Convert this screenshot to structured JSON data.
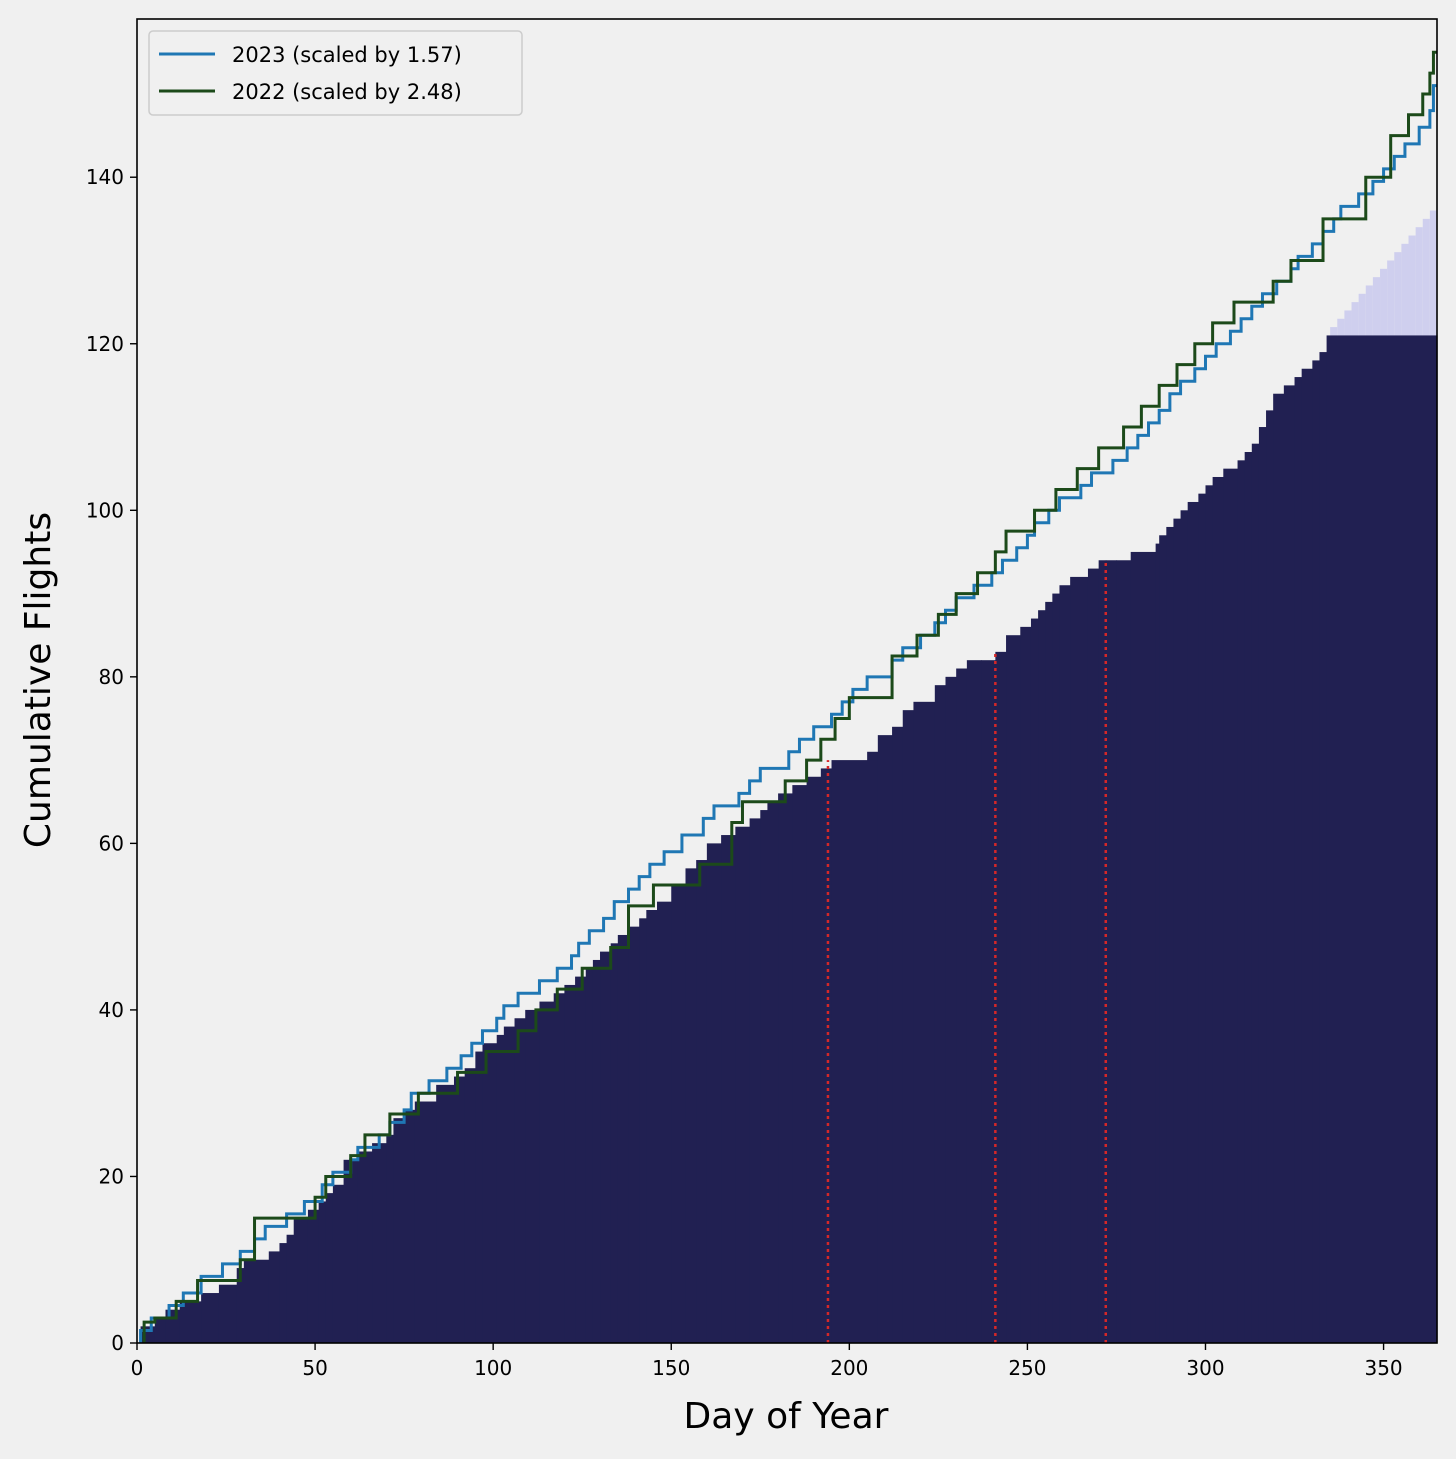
{
  "colors": {
    "background": "#f0f0f0",
    "bars": "#212052",
    "projection": "#cfcfee",
    "line_2023": "#1f77b4",
    "line_2022": "#1c4a1a",
    "markers": "#d62728"
  },
  "chart_data": {
    "type": "area",
    "xlabel": "Day of Year",
    "ylabel": "Cumulative Flights",
    "xlim": [
      0,
      365
    ],
    "ylim": [
      0,
      159
    ],
    "xticks": [
      0,
      50,
      100,
      150,
      200,
      250,
      300,
      350
    ],
    "yticks": [
      0,
      20,
      40,
      60,
      80,
      100,
      120,
      140
    ],
    "grid": false,
    "legend_position": "top-left",
    "cumulative_steps": {
      "x": [
        1,
        5,
        8,
        12,
        18,
        23,
        28,
        30,
        37,
        40,
        42,
        44,
        48,
        51,
        53,
        55,
        58,
        62,
        66,
        70,
        72,
        75,
        78,
        84,
        89,
        92,
        95,
        97,
        101,
        103,
        106,
        109,
        113,
        117,
        120,
        123,
        126,
        128,
        130,
        133,
        135,
        138,
        141,
        143,
        146,
        150,
        154,
        157,
        160,
        164,
        168,
        172,
        175,
        177,
        180,
        184,
        188,
        192,
        195,
        205,
        208,
        212,
        215,
        218,
        224,
        227,
        230,
        233,
        237,
        241,
        244,
        248,
        251,
        253,
        255,
        257,
        259,
        262,
        267,
        270,
        272,
        275,
        279,
        286,
        287,
        289,
        291,
        293,
        295,
        298,
        300,
        302,
        305,
        309,
        311,
        313,
        315,
        317,
        319,
        322,
        325,
        327,
        330,
        332,
        334
      ],
      "y": [
        2,
        3,
        4,
        5,
        6,
        7,
        9,
        10,
        11,
        12,
        13,
        15,
        16,
        17,
        18,
        19,
        22,
        23,
        24,
        25,
        27,
        28,
        29,
        31,
        32,
        33,
        35,
        36,
        37,
        38,
        39,
        40,
        41,
        42,
        43,
        44,
        45,
        46,
        47,
        48,
        49,
        50,
        51,
        52,
        53,
        55,
        57,
        58,
        60,
        61,
        62,
        63,
        64,
        65,
        66,
        67,
        68,
        69,
        70,
        71,
        73,
        74,
        76,
        77,
        79,
        80,
        81,
        82,
        82,
        83,
        85,
        86,
        87,
        88,
        89,
        90,
        91,
        92,
        93,
        94,
        94,
        94,
        95,
        96,
        97,
        98,
        99,
        100,
        101,
        102,
        103,
        104,
        105,
        106,
        107,
        108,
        110,
        112,
        114,
        115,
        116,
        117,
        118,
        119,
        121
      ],
      "end_day": 365
    },
    "projection_steps": {
      "x": [
        335,
        337,
        339,
        341,
        343,
        345,
        347,
        349,
        351,
        353,
        355,
        357,
        359,
        361,
        363
      ],
      "y": [
        122,
        123,
        124,
        125,
        126,
        127,
        128,
        129,
        130,
        131,
        132,
        133,
        134,
        135,
        136
      ]
    },
    "series": [
      {
        "name": "2023 (scaled by 1.57)",
        "x": [
          1,
          4,
          9,
          13,
          18,
          24,
          29,
          33,
          36,
          42,
          47,
          52,
          55,
          60,
          62,
          68,
          71,
          75,
          77,
          82,
          87,
          91,
          94,
          97,
          101,
          103,
          107,
          113,
          118,
          122,
          124,
          127,
          131,
          134,
          138,
          141,
          144,
          148,
          153,
          159,
          162,
          169,
          172,
          175,
          183,
          186,
          190,
          195,
          198,
          201,
          205,
          212,
          215,
          220,
          224,
          227,
          230,
          235,
          240,
          243,
          247,
          250,
          252,
          256,
          259,
          265,
          268,
          274,
          278,
          281,
          284,
          287,
          290,
          293,
          297,
          300,
          303,
          307,
          310,
          313,
          316,
          320,
          324,
          326,
          330,
          333,
          336,
          338,
          343,
          347,
          350,
          353,
          356,
          360,
          363,
          364
        ],
        "y": [
          1.5,
          3,
          4.5,
          6,
          8,
          9.5,
          11,
          12.5,
          14,
          15.5,
          17,
          19,
          20.5,
          22,
          23.5,
          25,
          26.5,
          28,
          30,
          31.5,
          33,
          34.5,
          36,
          37.5,
          39,
          40.5,
          42,
          43.5,
          45,
          46.5,
          48,
          49.5,
          51,
          53,
          54.5,
          56,
          57.5,
          59,
          61,
          63,
          64.5,
          66,
          67.5,
          69,
          71,
          72.5,
          74,
          75.5,
          77,
          78.5,
          80,
          82,
          83.5,
          85,
          86.5,
          88,
          89.5,
          91,
          92.5,
          94,
          95.5,
          97,
          98.5,
          100,
          101.5,
          103,
          104.5,
          106,
          107.5,
          109,
          110.5,
          112,
          114,
          115.5,
          117,
          118.5,
          120,
          121.5,
          123,
          124.5,
          126,
          127.5,
          129,
          130.5,
          132,
          133.5,
          135,
          136.5,
          138,
          139.5,
          141,
          142.5,
          144,
          146,
          148,
          151
        ]
      },
      {
        "name": "2022 (scaled by 2.48)",
        "x": [
          2,
          5,
          11,
          17,
          29,
          33,
          50,
          53,
          60,
          64,
          71,
          79,
          90,
          98,
          107,
          112,
          118,
          125,
          133,
          138,
          145,
          158,
          167,
          170,
          182,
          188,
          192,
          196,
          200,
          212,
          219,
          225,
          230,
          236,
          241,
          244,
          252,
          258,
          264,
          270,
          277,
          282,
          287,
          292,
          297,
          302,
          308,
          319,
          324,
          333,
          345,
          352,
          357,
          361,
          363,
          364
        ],
        "y": [
          2.5,
          3,
          5,
          7.5,
          10,
          15,
          17.5,
          20,
          22.5,
          25,
          27.5,
          30,
          32.5,
          35,
          37.5,
          40,
          42.5,
          45,
          47.5,
          52.5,
          55,
          57.5,
          62.5,
          65,
          67.5,
          70,
          72.5,
          75,
          77.5,
          82.5,
          85,
          87.5,
          90,
          92.5,
          95,
          97.5,
          100,
          102.5,
          105,
          107.5,
          110,
          112.5,
          115,
          117.5,
          120,
          122.5,
          125,
          127.5,
          130,
          135,
          140,
          145,
          147.5,
          150,
          152.5,
          155
        ]
      }
    ],
    "vertical_markers": [
      {
        "x": 194,
        "y_top": 70
      },
      {
        "x": 241,
        "y_top": 83
      },
      {
        "x": 272,
        "y_top": 94
      }
    ]
  }
}
